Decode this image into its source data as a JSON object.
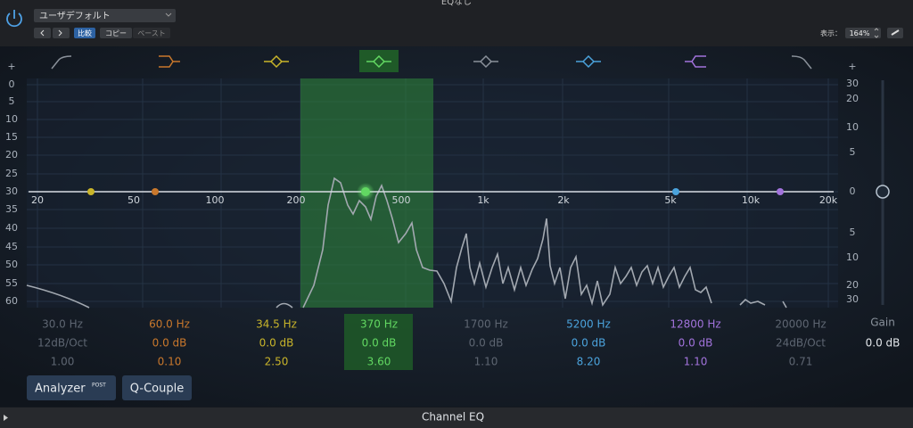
{
  "window": {
    "title": "EQなし"
  },
  "toolbar": {
    "preset": "ユーザデフォルト",
    "compare": "比較",
    "copy": "コピー",
    "paste": "ペースト",
    "view_label": "表示：",
    "zoom": "164%"
  },
  "graph": {
    "left_scale": [
      "+",
      "0",
      "5",
      "10",
      "15",
      "20",
      "25",
      "30",
      "35",
      "40",
      "45",
      "50",
      "55",
      "60"
    ],
    "right_scale": [
      "+",
      "30",
      "20",
      "10",
      "5",
      "0",
      "5",
      "10",
      "20",
      "30"
    ],
    "freq_labels": [
      "20",
      "50",
      "100",
      "200",
      "500",
      "1k",
      "2k",
      "5k",
      "10k",
      "20k"
    ]
  },
  "bands": [
    {
      "freq": "30.0 Hz",
      "gain": "12dB/Oct",
      "q": "1.00",
      "color": "#5e6672"
    },
    {
      "freq": "60.0 Hz",
      "gain": "0.0 dB",
      "q": "0.10",
      "color": "#c9782c"
    },
    {
      "freq": "34.5 Hz",
      "gain": "0.0 dB",
      "q": "2.50",
      "color": "#c9b52a"
    },
    {
      "freq": "370 Hz",
      "gain": "0.0 dB",
      "q": "3.60",
      "color": "#62d862"
    },
    {
      "freq": "1700 Hz",
      "gain": "0.0 dB",
      "q": "1.10",
      "color": "#5e6672"
    },
    {
      "freq": "5200 Hz",
      "gain": "0.0 dB",
      "q": "8.20",
      "color": "#4ba3dc"
    },
    {
      "freq": "12800 Hz",
      "gain": "0.0 dB",
      "q": "1.10",
      "color": "#a273dc"
    },
    {
      "freq": "20000 Hz",
      "gain": "24dB/Oct",
      "q": "0.71",
      "color": "#5e6672"
    }
  ],
  "gain": {
    "label": "Gain",
    "value": "0.0 dB"
  },
  "buttons": {
    "analyzer": "Analyzer",
    "post": "POST",
    "q_couple": "Q-Couple"
  },
  "footer": {
    "title": "Channel EQ"
  }
}
